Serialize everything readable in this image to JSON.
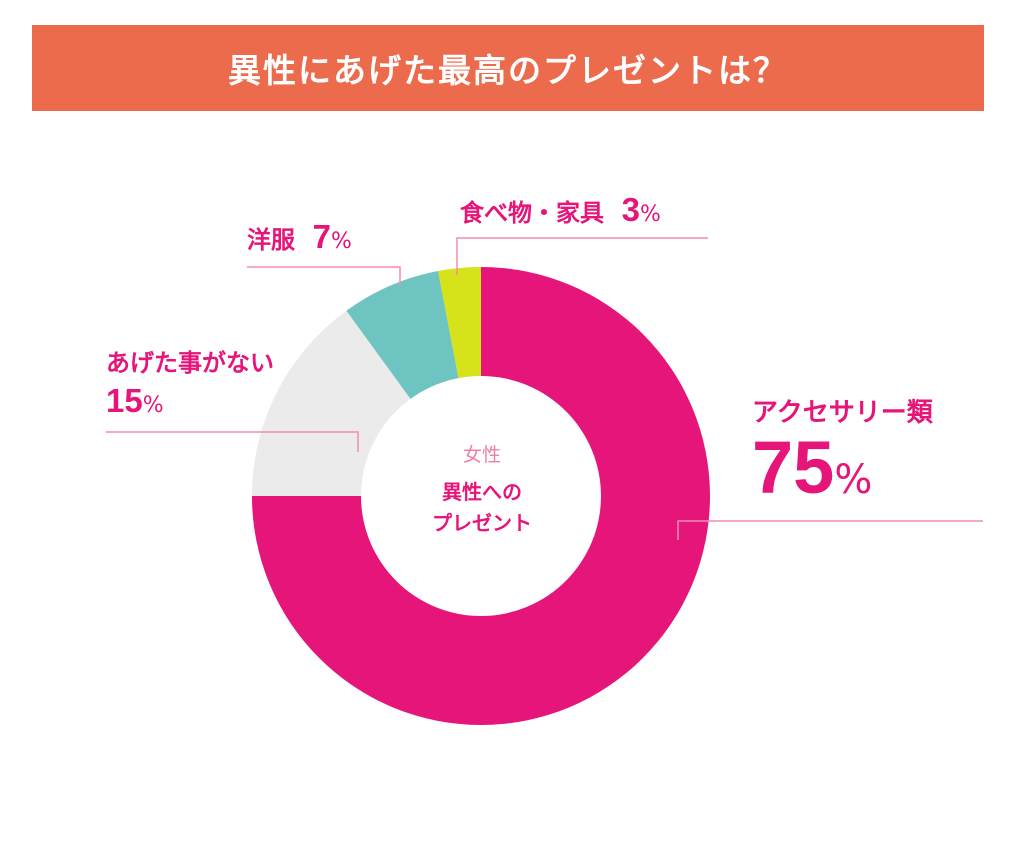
{
  "header": {
    "title": "異性にあげた最高のプレゼントは？"
  },
  "center": {
    "sub": "女性",
    "main_line1": "異性への",
    "main_line2": "プレゼント"
  },
  "colors": {
    "banner": "#ec6b4d",
    "accent": "#e5157a",
    "leader": "#f08db4"
  },
  "chart_data": {
    "type": "pie",
    "donut": true,
    "title": "異性にあげた最高のプレゼントは？",
    "unit": "%",
    "slices": [
      {
        "name": "アクセサリー類",
        "value": 75,
        "color": "#e5157a"
      },
      {
        "name": "あげた事がない",
        "value": 15,
        "color": "#ebebeb"
      },
      {
        "name": "洋服",
        "value": 7,
        "color": "#6ec4c1"
      },
      {
        "name": "食べ物・家具",
        "value": 3,
        "color": "#d6e21a"
      }
    ]
  }
}
